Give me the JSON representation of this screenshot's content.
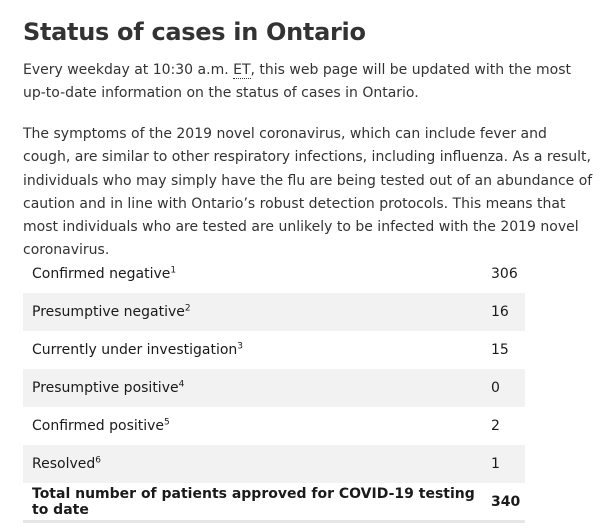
{
  "page": {
    "title": "Status of cases in Ontario",
    "intro_before": "Every weekday at 10:30 a.m. ",
    "intro_abbr": "ET",
    "intro_after": ", this web page will be updated with the most up-to-date information on the status of cases in Ontario.",
    "paragraph": "The symptoms of the 2019 novel coronavirus, which can include fever and cough, are similar to other respiratory infections, including influenza. As a result, individuals who may simply have the flu are being tested out of an abundance of caution and in line with Ontario’s robust detection protocols. This means that most individuals who are tested are unlikely to be infected with the 2019 novel coronavirus."
  },
  "table": {
    "rows": [
      {
        "label": "Confirmed negative",
        "note": "1",
        "value": "306"
      },
      {
        "label": "Presumptive negative",
        "note": "2",
        "value": "16"
      },
      {
        "label": "Currently under investigation",
        "note": "3",
        "value": "15"
      },
      {
        "label": "Presumptive positive",
        "note": "4",
        "value": "0"
      },
      {
        "label": "Confirmed positive",
        "note": "5",
        "value": "2"
      },
      {
        "label": "Resolved",
        "note": "6",
        "value": "1"
      }
    ],
    "total": {
      "label": "Total number of patients approved for COVID-19 testing to date",
      "value": "340"
    }
  }
}
